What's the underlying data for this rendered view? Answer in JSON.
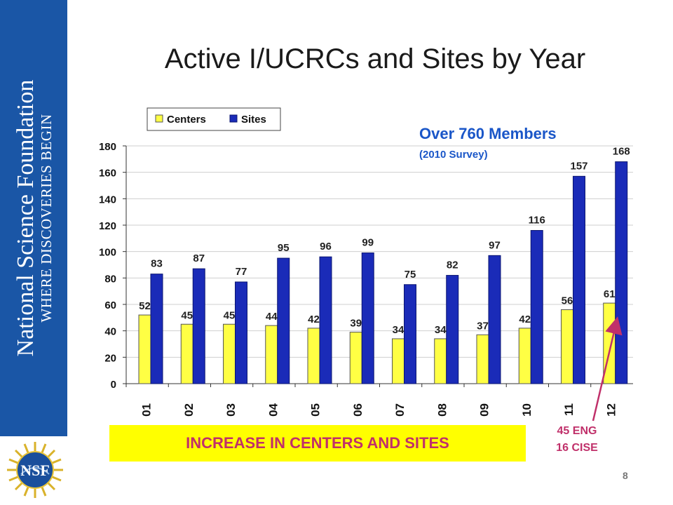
{
  "sidebar": {
    "org_name": "National Science Foundation",
    "tagline": "WHERE DISCOVERIES BEGIN",
    "logo_text": "NSF"
  },
  "slide": {
    "title": "Active I/UCRCs and Sites by Year",
    "members_headline": "Over 760 Members",
    "members_note": "(2010 Survey)",
    "banner": "INCREASE IN CENTERS AND SITES",
    "annotation_line1": "45 ENG",
    "annotation_line2": "16 CISE",
    "page_number": "8"
  },
  "colors": {
    "sidebar": "#1a56a6",
    "centers": "#ffff44",
    "sites": "#1a2bb8",
    "accent_blue": "#1a56c8",
    "accent_pink": "#c0306a",
    "banner": "#ffff00"
  },
  "chart_data": {
    "type": "bar",
    "title": "",
    "xlabel": "",
    "ylabel": "",
    "ylim": [
      0,
      180
    ],
    "yticks": [
      0,
      20,
      40,
      60,
      80,
      100,
      120,
      140,
      160,
      180
    ],
    "grid": true,
    "legend_position": "top-left",
    "categories": [
      "01",
      "02",
      "03",
      "04",
      "05",
      "06",
      "07",
      "08",
      "09",
      "10",
      "11",
      "12"
    ],
    "series": [
      {
        "name": "Centers",
        "values": [
          52,
          45,
          45,
          44,
          42,
          39,
          34,
          34,
          37,
          42,
          56,
          61
        ]
      },
      {
        "name": "Sites",
        "values": [
          83,
          87,
          77,
          95,
          96,
          99,
          75,
          82,
          97,
          116,
          157,
          168
        ]
      }
    ]
  }
}
